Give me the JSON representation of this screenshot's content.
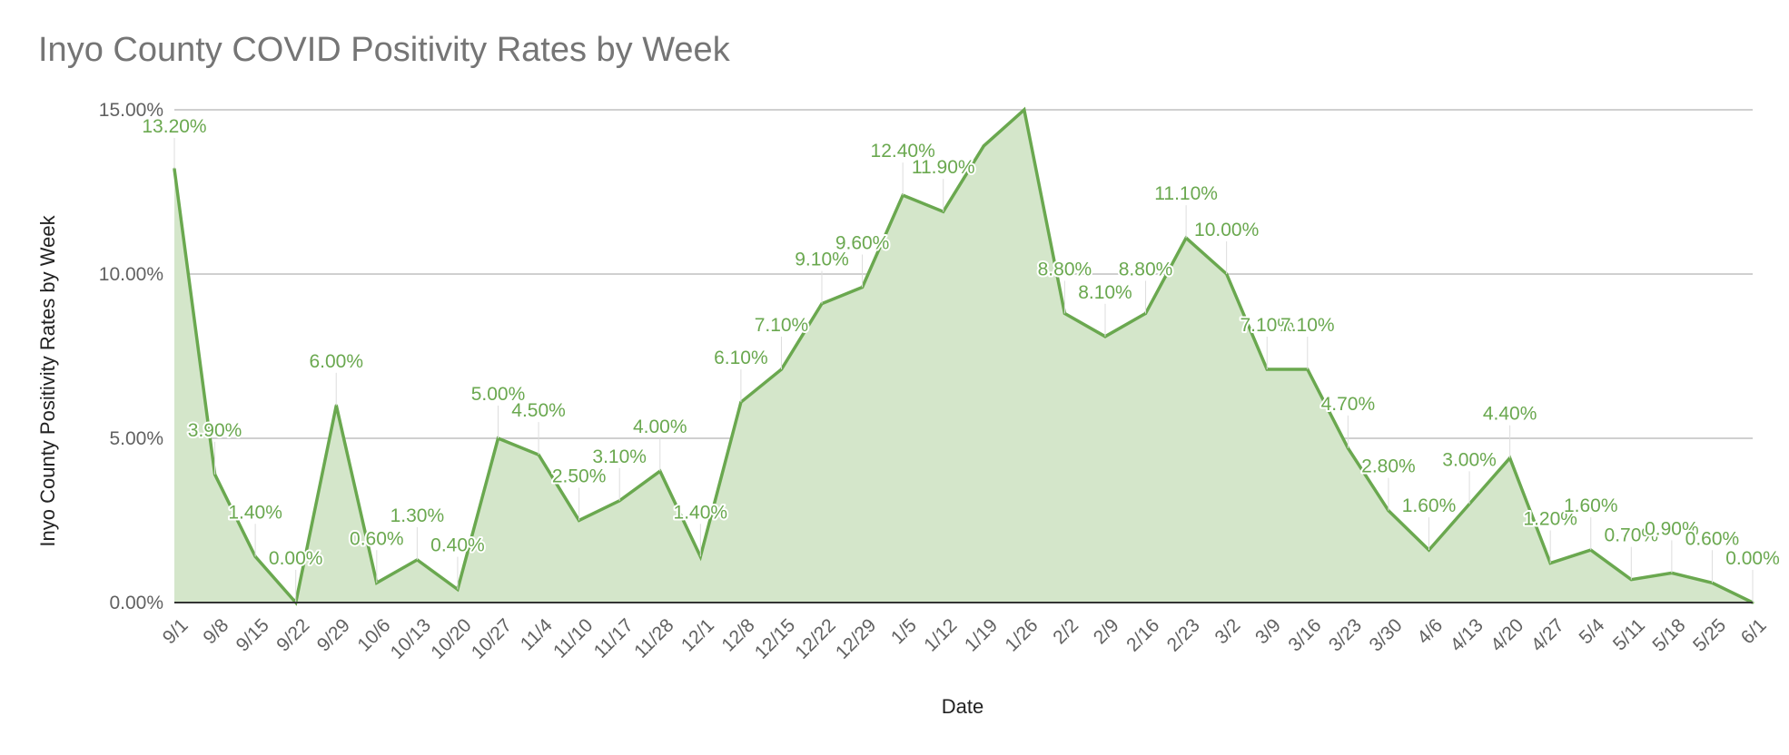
{
  "chart_data": {
    "type": "area",
    "title": "Inyo County COVID Positivity Rates by Week",
    "xlabel": "Date",
    "ylabel": "Inyo County Positivity Rates by Week",
    "ylim": [
      0,
      15
    ],
    "yticks": [
      "0.00%",
      "5.00%",
      "10.00%",
      "15.00%"
    ],
    "ytick_values": [
      0,
      5,
      10,
      15
    ],
    "grid": true,
    "legend": "none",
    "categories": [
      "9/1",
      "9/8",
      "9/15",
      "9/22",
      "9/29",
      "10/6",
      "10/13",
      "10/20",
      "10/27",
      "11/4",
      "11/10",
      "11/17",
      "11/28",
      "12/1",
      "12/8",
      "12/15",
      "12/22",
      "12/29",
      "1/5",
      "1/12",
      "1/19",
      "1/26",
      "2/2",
      "2/9",
      "2/16",
      "2/23",
      "3/2",
      "3/9",
      "3/16",
      "3/23",
      "3/30",
      "4/6",
      "4/13",
      "4/20",
      "4/27",
      "5/4",
      "5/11",
      "5/18",
      "5/25",
      "6/1"
    ],
    "values": [
      13.2,
      3.9,
      1.4,
      0.0,
      6.0,
      0.6,
      1.3,
      0.4,
      5.0,
      4.5,
      2.5,
      3.1,
      4.0,
      1.4,
      6.1,
      7.1,
      9.1,
      9.6,
      12.4,
      11.9,
      13.9,
      15.0,
      8.8,
      8.1,
      8.8,
      11.1,
      10.0,
      7.1,
      7.1,
      4.7,
      2.8,
      1.6,
      3.0,
      4.4,
      1.2,
      1.6,
      0.7,
      0.9,
      0.6,
      0.0
    ],
    "data_labels": [
      "13.20%",
      "3.90%",
      "1.40%",
      "0.00%",
      "6.00%",
      "0.60%",
      "1.30%",
      "0.40%",
      "5.00%",
      "4.50%",
      "2.50%",
      "3.10%",
      "4.00%",
      "1.40%",
      "6.10%",
      "7.10%",
      "9.10%",
      "9.60%",
      "12.40%",
      "11.90%",
      "",
      "",
      "8.80%",
      "8.10%",
      "8.80%",
      "11.10%",
      "10.00%",
      "7.10%",
      "7.10%",
      "4.70%",
      "2.80%",
      "1.60%",
      "3.00%",
      "4.40%",
      "1.20%",
      "1.60%",
      "0.70%",
      "0.90%",
      "0.60%",
      "0.00%"
    ],
    "colors": {
      "line": "#6aa84f",
      "fill": "#d4e6ca",
      "grid": "#c0c0c0",
      "baseline": "#333333",
      "tick": "#616161"
    }
  }
}
